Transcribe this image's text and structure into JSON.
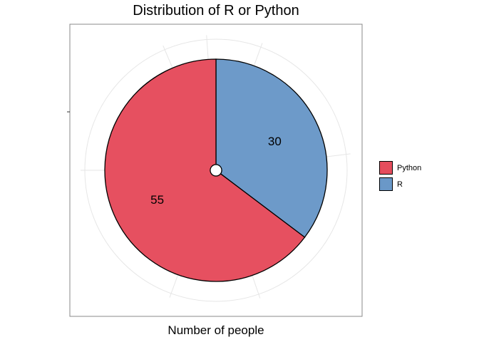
{
  "chart_data": {
    "type": "pie",
    "title": "Distribution of R or Python",
    "xlabel": "Number of people",
    "ylabel": "",
    "legend_position": "right",
    "grid": true,
    "slices": [
      {
        "label": "R",
        "value": 30,
        "color": "#6a98c8"
      },
      {
        "label": "Python",
        "value": 55,
        "color": "#e54d5d"
      }
    ],
    "legend": [
      {
        "label": "Python",
        "color": "#e54d5d"
      },
      {
        "label": "R",
        "color": "#6a98c8"
      }
    ]
  }
}
